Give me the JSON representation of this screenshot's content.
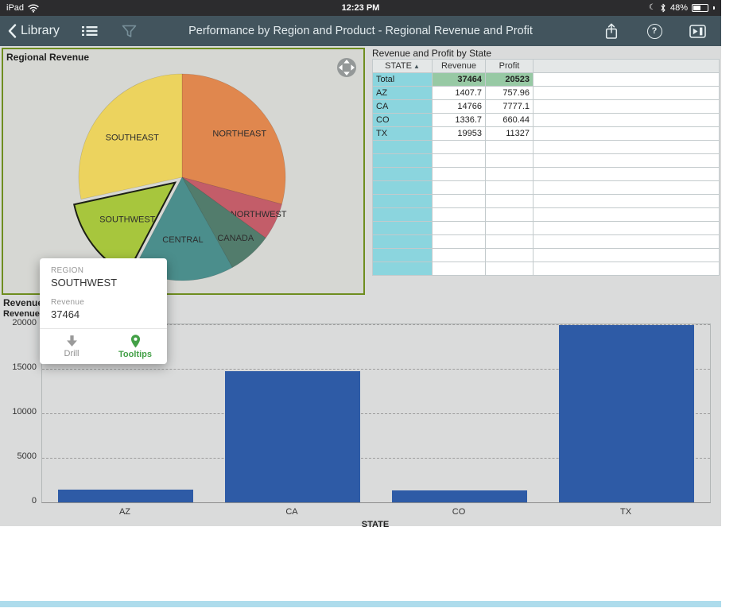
{
  "status": {
    "device": "iPad",
    "time": "12:23 PM",
    "battery": "48%"
  },
  "toolbar": {
    "back": "Library",
    "title": "Performance by Region and Product - Regional Revenue and Profit"
  },
  "icons": {
    "help": "?",
    "sort_asc": "▲",
    "moon": "☾"
  },
  "colors": {
    "toolbar_bg": "#42545d",
    "selected_panel_border": "#6e8d1f",
    "state_column": "#8bd5de",
    "total_highlight": "#97c9a4",
    "bar": "#2e5ba6",
    "bottom_strip": "#aedcec",
    "tooltip_green": "#43a047"
  },
  "table": {
    "title": "Revenue and Profit by State",
    "columns": [
      "STATE",
      "Revenue",
      "Profit",
      ""
    ],
    "rows": [
      {
        "state": "Total",
        "revenue": "37464",
        "profit": "20523",
        "total": true
      },
      {
        "state": "AZ",
        "revenue": "1407.7",
        "profit": "757.96"
      },
      {
        "state": "CA",
        "revenue": "14766",
        "profit": "7777.1"
      },
      {
        "state": "CO",
        "revenue": "1336.7",
        "profit": "660.44"
      },
      {
        "state": "TX",
        "revenue": "19953",
        "profit": "11327"
      }
    ],
    "empty_rows": 10
  },
  "tooltip": {
    "dim_label": "REGION",
    "dim_value": "SOUTHWEST",
    "measure_label": "Revenue",
    "measure_value": "37464",
    "actions": [
      {
        "label": "Drill"
      },
      {
        "label": "Tooltips"
      }
    ]
  },
  "chart_data": [
    {
      "type": "pie",
      "title": "Regional Revenue",
      "start_angle_deg": 0,
      "slices": [
        {
          "label": "NORTHEAST",
          "pct": 29.2,
          "color": "#e0874e",
          "label_r": 0.7
        },
        {
          "label": "NORTHWEST",
          "pct": 5.8,
          "color": "#c35d69",
          "label_r": 0.82
        },
        {
          "label": "CANADA",
          "pct": 6.9,
          "color": "#527c6c",
          "label_r": 0.78
        },
        {
          "label": "CENTRAL",
          "pct": 15.8,
          "color": "#4b8e8c",
          "label_r": 0.6
        },
        {
          "label": "SOUTHWEST",
          "pct": 13.9,
          "color": "#a7c63d",
          "label_r": 0.58,
          "selected": true,
          "value": 37464
        },
        {
          "label": "SOUTHEAST",
          "pct": 28.4,
          "color": "#ecd35e",
          "label_r": 0.62
        }
      ]
    },
    {
      "type": "bar",
      "title": "Revenue",
      "ylabel": "Revenue",
      "xlabel": "STATE",
      "categories": [
        "AZ",
        "CA",
        "CO",
        "TX"
      ],
      "values": [
        1407.7,
        14766,
        1336.7,
        19953
      ],
      "ylim": [
        0,
        20000
      ],
      "yticks": [
        0,
        5000,
        10000,
        15000,
        20000
      ],
      "bar_color": "#2e5ba6",
      "grid": "dashed"
    }
  ]
}
